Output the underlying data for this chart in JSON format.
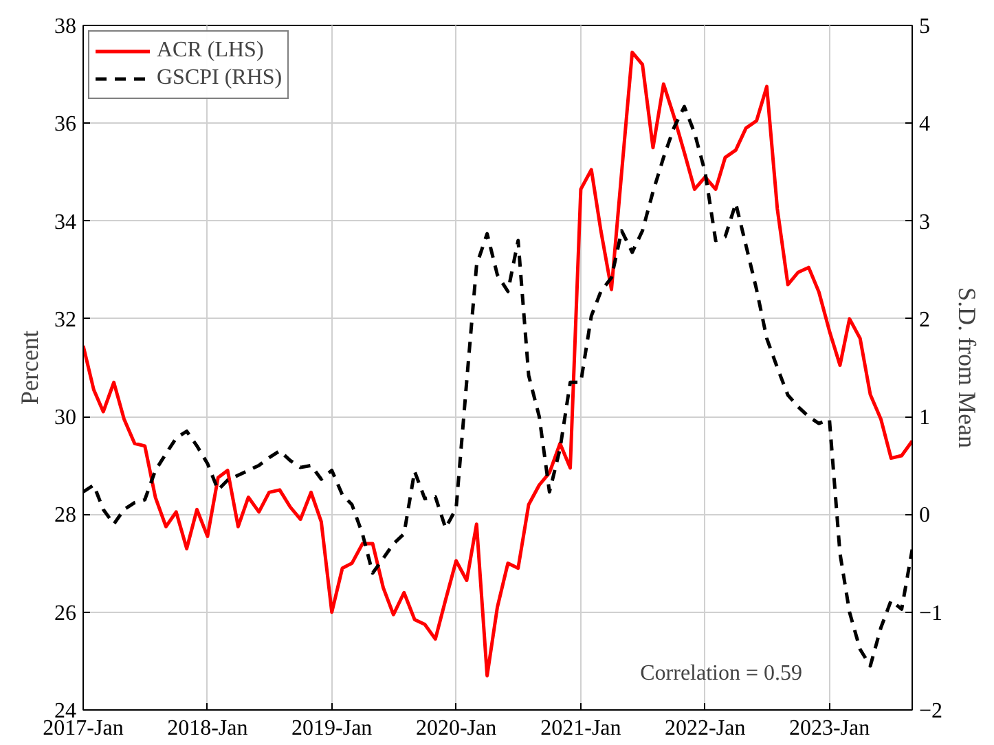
{
  "chart_data": {
    "type": "line",
    "ylabel": "Percent",
    "y2label": "S.D. from Mean",
    "x": [
      "2017-01",
      "2017-02",
      "2017-03",
      "2017-04",
      "2017-05",
      "2017-06",
      "2017-07",
      "2017-08",
      "2017-09",
      "2017-10",
      "2017-11",
      "2017-12",
      "2018-01",
      "2018-02",
      "2018-03",
      "2018-04",
      "2018-05",
      "2018-06",
      "2018-07",
      "2018-08",
      "2018-09",
      "2018-10",
      "2018-11",
      "2018-12",
      "2019-01",
      "2019-02",
      "2019-03",
      "2019-04",
      "2019-05",
      "2019-06",
      "2019-07",
      "2019-08",
      "2019-09",
      "2019-10",
      "2019-11",
      "2019-12",
      "2020-01",
      "2020-02",
      "2020-03",
      "2020-04",
      "2020-05",
      "2020-06",
      "2020-07",
      "2020-08",
      "2020-09",
      "2020-10",
      "2020-11",
      "2020-12",
      "2021-01",
      "2021-02",
      "2021-03",
      "2021-04",
      "2021-05",
      "2021-06",
      "2021-07",
      "2021-08",
      "2021-09",
      "2021-10",
      "2021-11",
      "2021-12",
      "2022-01",
      "2022-02",
      "2022-03",
      "2022-04",
      "2022-05",
      "2022-06",
      "2022-07",
      "2022-08",
      "2022-09",
      "2022-10",
      "2022-11",
      "2022-12",
      "2023-01",
      "2023-02",
      "2023-03",
      "2023-04",
      "2023-05",
      "2023-06",
      "2023-07",
      "2023-08",
      "2023-09"
    ],
    "series": [
      {
        "name": "ACR (LHS)",
        "color": "#ff0000",
        "line_style": "solid",
        "values": [
          31.45,
          30.55,
          30.1,
          30.7,
          29.95,
          29.45,
          29.4,
          28.35,
          27.75,
          28.05,
          27.3,
          28.1,
          27.55,
          28.75,
          28.9,
          27.75,
          28.35,
          28.05,
          28.45,
          28.5,
          28.15,
          27.9,
          28.45,
          27.85,
          26.0,
          26.9,
          27.0,
          27.4,
          27.4,
          26.5,
          25.95,
          26.4,
          25.85,
          25.75,
          25.45,
          26.25,
          27.05,
          26.65,
          27.8,
          24.7,
          26.1,
          27.0,
          26.9,
          28.2,
          28.6,
          28.85,
          29.45,
          28.95,
          34.65,
          35.05,
          33.8,
          32.6,
          35.0,
          37.45,
          37.2,
          35.5,
          36.8,
          36.15,
          35.4,
          34.65,
          34.9,
          34.65,
          35.3,
          35.45,
          35.9,
          36.05,
          36.75,
          34.25,
          32.7,
          32.95,
          33.05,
          32.55,
          31.75,
          31.05,
          32.0,
          31.6,
          30.45,
          29.95,
          29.15,
          29.2,
          29.5
        ]
      },
      {
        "name": "GSCPI (RHS)",
        "color": "#000000",
        "line_style": "dashed",
        "axis": "y2",
        "values": [
          0.23,
          0.3,
          0.05,
          -0.1,
          0.05,
          0.12,
          0.15,
          0.45,
          0.62,
          0.78,
          0.85,
          0.7,
          0.52,
          0.25,
          0.35,
          0.4,
          0.45,
          0.5,
          0.58,
          0.65,
          0.55,
          0.48,
          0.5,
          0.36,
          0.45,
          0.2,
          0.1,
          -0.2,
          -0.6,
          -0.45,
          -0.3,
          -0.2,
          0.44,
          0.16,
          0.18,
          -0.14,
          0.06,
          1.36,
          2.55,
          2.87,
          2.45,
          2.28,
          2.8,
          1.42,
          1.0,
          0.23,
          0.67,
          1.35,
          1.35,
          2.03,
          2.28,
          2.42,
          2.9,
          2.68,
          2.9,
          3.3,
          3.65,
          3.95,
          4.17,
          3.9,
          3.5,
          2.8,
          2.84,
          3.18,
          2.75,
          2.3,
          1.8,
          1.5,
          1.22,
          1.1,
          1.0,
          0.93,
          0.97,
          -0.4,
          -1.0,
          -1.38,
          -1.55,
          -1.16,
          -0.88,
          -0.97,
          -0.36
        ]
      }
    ],
    "xlim": [
      "2017-01",
      "2023-09"
    ],
    "xticks": [
      {
        "value": "2017-01",
        "label": "2017-Jan"
      },
      {
        "value": "2018-01",
        "label": "2018-Jan"
      },
      {
        "value": "2019-01",
        "label": "2019-Jan"
      },
      {
        "value": "2020-01",
        "label": "2020-Jan"
      },
      {
        "value": "2021-01",
        "label": "2021-Jan"
      },
      {
        "value": "2022-01",
        "label": "2022-Jan"
      },
      {
        "value": "2023-01",
        "label": "2023-Jan"
      }
    ],
    "ylim": [
      24,
      38
    ],
    "yticks": [
      24,
      26,
      28,
      30,
      32,
      34,
      36,
      38
    ],
    "y2lim": [
      -2,
      5
    ],
    "y2ticks": [
      -2,
      -1,
      0,
      1,
      2,
      3,
      4,
      5
    ],
    "annotations": [
      "Correlation = 0.59"
    ],
    "grid": true,
    "legend": "top left",
    "marker": "none"
  }
}
